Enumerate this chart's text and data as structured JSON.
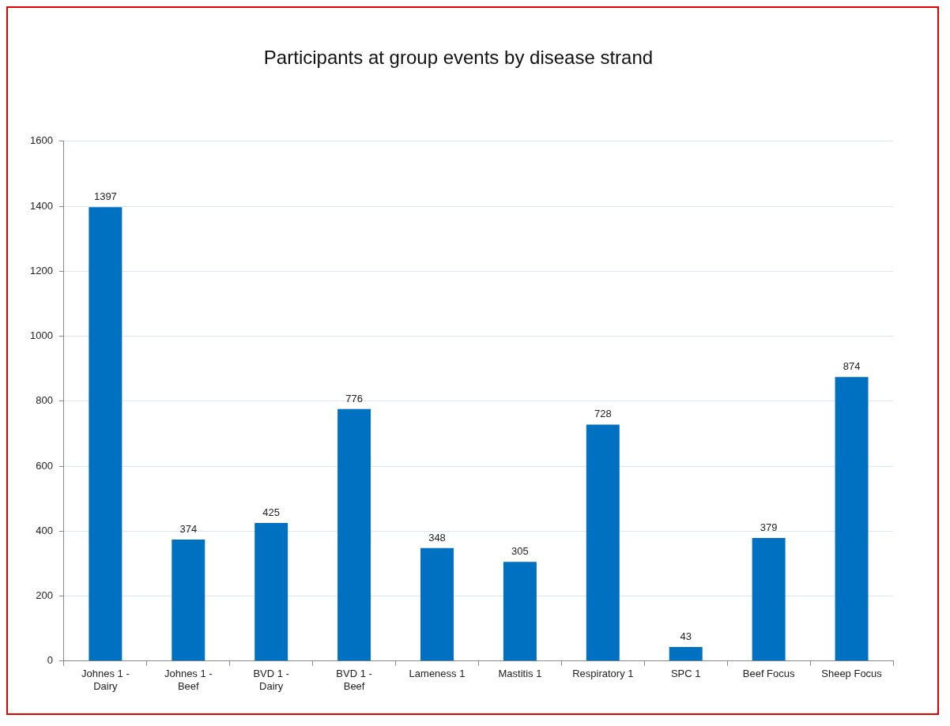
{
  "chart_data": {
    "type": "bar",
    "title": "Participants at group events by disease strand",
    "categories": [
      "Johnes 1 - Dairy",
      "Johnes 1 - Beef",
      "BVD 1 - Dairy",
      "BVD 1 - Beef",
      "Lameness 1",
      "Mastitis 1",
      "Respiratory 1",
      "SPC 1",
      "Beef Focus",
      "Sheep Focus"
    ],
    "values": [
      1397,
      374,
      425,
      776,
      348,
      305,
      728,
      43,
      379,
      874
    ],
    "color": "#0070c0",
    "ylim": [
      0,
      1600
    ],
    "yticks": [
      0,
      200,
      400,
      600,
      800,
      1000,
      1200,
      1400,
      1600
    ],
    "grid": "y",
    "data_labels": true,
    "legend": false
  }
}
